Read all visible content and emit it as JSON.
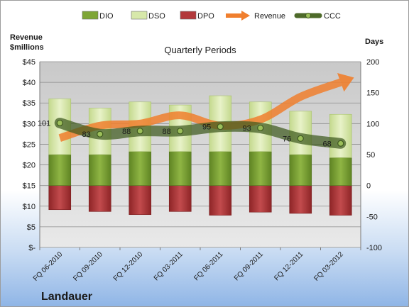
{
  "chart_data": {
    "type": "bar",
    "title": "Quarterly Periods",
    "company": "Landauer",
    "left_axis_title": [
      "Revenue",
      "$millions"
    ],
    "right_axis_title": "Days",
    "categories": [
      "FQ 06-2010",
      "FQ 09-2010",
      "FQ 12-2010",
      "FQ 03-2011",
      "FQ 06-2011",
      "FQ 09-2011",
      "FQ 12-2011",
      "FQ 03-2012"
    ],
    "left_axis": {
      "min": 0,
      "max": 45,
      "step": 5,
      "tick_labels": [
        "$-",
        "$5",
        "$10",
        "$15",
        "$20",
        "$25",
        "$30",
        "$35",
        "$40",
        "$45"
      ]
    },
    "right_axis": {
      "min": -100,
      "max": 200,
      "step": 50,
      "tick_labels": [
        "-100",
        "-50",
        "0",
        "50",
        "100",
        "150",
        "200"
      ]
    },
    "legend": {
      "position": "top",
      "items": [
        {
          "key": "dio",
          "label": "DIO",
          "color": "#7ea536",
          "marker": "box"
        },
        {
          "key": "dso",
          "label": "DSO",
          "color": "#d7e8aa",
          "marker": "box"
        },
        {
          "key": "dpo",
          "label": "DPO",
          "color": "#b2393b",
          "marker": "box"
        },
        {
          "key": "revenue",
          "label": "Revenue",
          "color": "#f07f2e",
          "marker": "arrow"
        },
        {
          "key": "ccc",
          "label": "CCC",
          "color": "#4e6a2a",
          "marker": "line-dot"
        }
      ]
    },
    "series": [
      {
        "name": "DIO",
        "axis": "right",
        "values": [
          50,
          50,
          55,
          55,
          55,
          55,
          50,
          45
        ]
      },
      {
        "name": "DSO",
        "axis": "right",
        "values": [
          140,
          125,
          135,
          130,
          145,
          135,
          120,
          115
        ]
      },
      {
        "name": "DPO",
        "axis": "right",
        "values": [
          -39,
          -42,
          -47,
          -42,
          -48,
          -43,
          -45,
          -48
        ]
      },
      {
        "name": "Revenue",
        "axis": "left",
        "values": [
          26.5,
          29.5,
          30,
          32,
          29.5,
          31,
          36.5,
          40
        ]
      },
      {
        "name": "CCC",
        "axis": "right",
        "values": [
          101,
          83,
          88,
          88,
          95,
          93,
          76,
          68
        ]
      }
    ],
    "ccc_labels": [
      "101",
      "83",
      "88",
      "88",
      "95",
      "93",
      "76",
      "68"
    ],
    "grid": true
  }
}
